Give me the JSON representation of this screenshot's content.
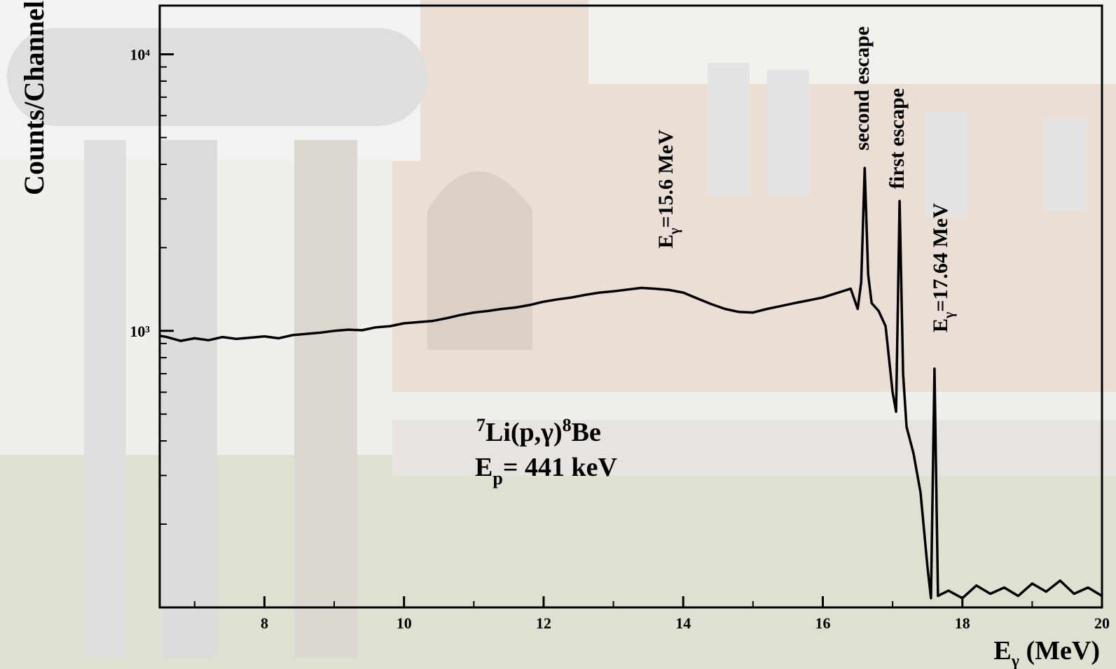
{
  "chart_data": {
    "type": "line",
    "title": null,
    "x_label": {
      "main": "E",
      "sub": "γ",
      "rest": " (MeV)"
    },
    "y_label": "Counts/Channel",
    "log_y": true,
    "xlim": [
      6.5,
      20
    ],
    "ylim": [
      100,
      15000
    ],
    "xticks": [
      8,
      10,
      12,
      14,
      16,
      18,
      20
    ],
    "x_minor_ticks": [
      7,
      9,
      11,
      13,
      15,
      17,
      19
    ],
    "yticks": [
      {
        "value": 1000,
        "label": "10³"
      },
      {
        "value": 10000,
        "label": "10⁴"
      }
    ],
    "y_minor_ticks": [
      200,
      300,
      400,
      500,
      600,
      700,
      800,
      900,
      2000,
      3000,
      4000,
      5000,
      6000,
      7000,
      8000,
      9000
    ],
    "series": [
      {
        "name": null,
        "color": "#000000",
        "x": [
          6.5,
          6.6,
          6.8,
          7.0,
          7.2,
          7.4,
          7.6,
          7.8,
          8.0,
          8.2,
          8.4,
          8.6,
          8.8,
          9.0,
          9.2,
          9.4,
          9.6,
          9.8,
          10.0,
          10.2,
          10.4,
          10.6,
          10.8,
          11.0,
          11.2,
          11.4,
          11.6,
          11.8,
          12.0,
          12.2,
          12.4,
          12.6,
          12.8,
          13.0,
          13.2,
          13.4,
          13.6,
          13.8,
          14.0,
          14.2,
          14.4,
          14.6,
          14.8,
          15.0,
          15.2,
          15.4,
          15.6,
          15.8,
          16.0,
          16.2,
          16.4,
          16.5,
          16.55,
          16.6,
          16.65,
          16.7,
          16.8,
          16.9,
          17.0,
          17.05,
          17.1,
          17.15,
          17.2,
          17.3,
          17.4,
          17.5,
          17.55,
          17.6,
          17.65,
          17.8,
          18.0,
          18.2,
          18.4,
          18.6,
          18.8,
          19.0,
          19.2,
          19.4,
          19.6,
          19.8,
          20.0
        ],
        "values": [
          960,
          950,
          920,
          940,
          925,
          950,
          935,
          945,
          955,
          940,
          965,
          975,
          985,
          1000,
          1010,
          1005,
          1030,
          1040,
          1065,
          1075,
          1085,
          1110,
          1140,
          1165,
          1180,
          1200,
          1215,
          1240,
          1275,
          1300,
          1320,
          1350,
          1375,
          1390,
          1410,
          1430,
          1420,
          1405,
          1375,
          1310,
          1250,
          1200,
          1170,
          1165,
          1200,
          1230,
          1260,
          1290,
          1320,
          1370,
          1420,
          1200,
          1500,
          3880,
          1600,
          1260,
          1180,
          1040,
          600,
          510,
          2950,
          700,
          450,
          360,
          260,
          140,
          108,
          730,
          110,
          115,
          108,
          120,
          112,
          118,
          110,
          122,
          114,
          125,
          112,
          118,
          110
        ]
      }
    ],
    "annotations": [
      {
        "main": "E",
        "sub": "γ",
        "rest": "=15.6 MeV"
      },
      {
        "text": "second escape"
      },
      {
        "text": "first escape"
      },
      {
        "main": "E",
        "sub": "γ",
        "rest": "=17.64 MeV"
      }
    ],
    "reaction_label": [
      {
        "sup": "7"
      },
      {
        "text": "Li(p,γ)"
      },
      {
        "sup": "8"
      },
      {
        "text": "Be"
      }
    ],
    "energy_label": {
      "main": "E",
      "sub": "p",
      "rest": "= 441 keV"
    }
  }
}
